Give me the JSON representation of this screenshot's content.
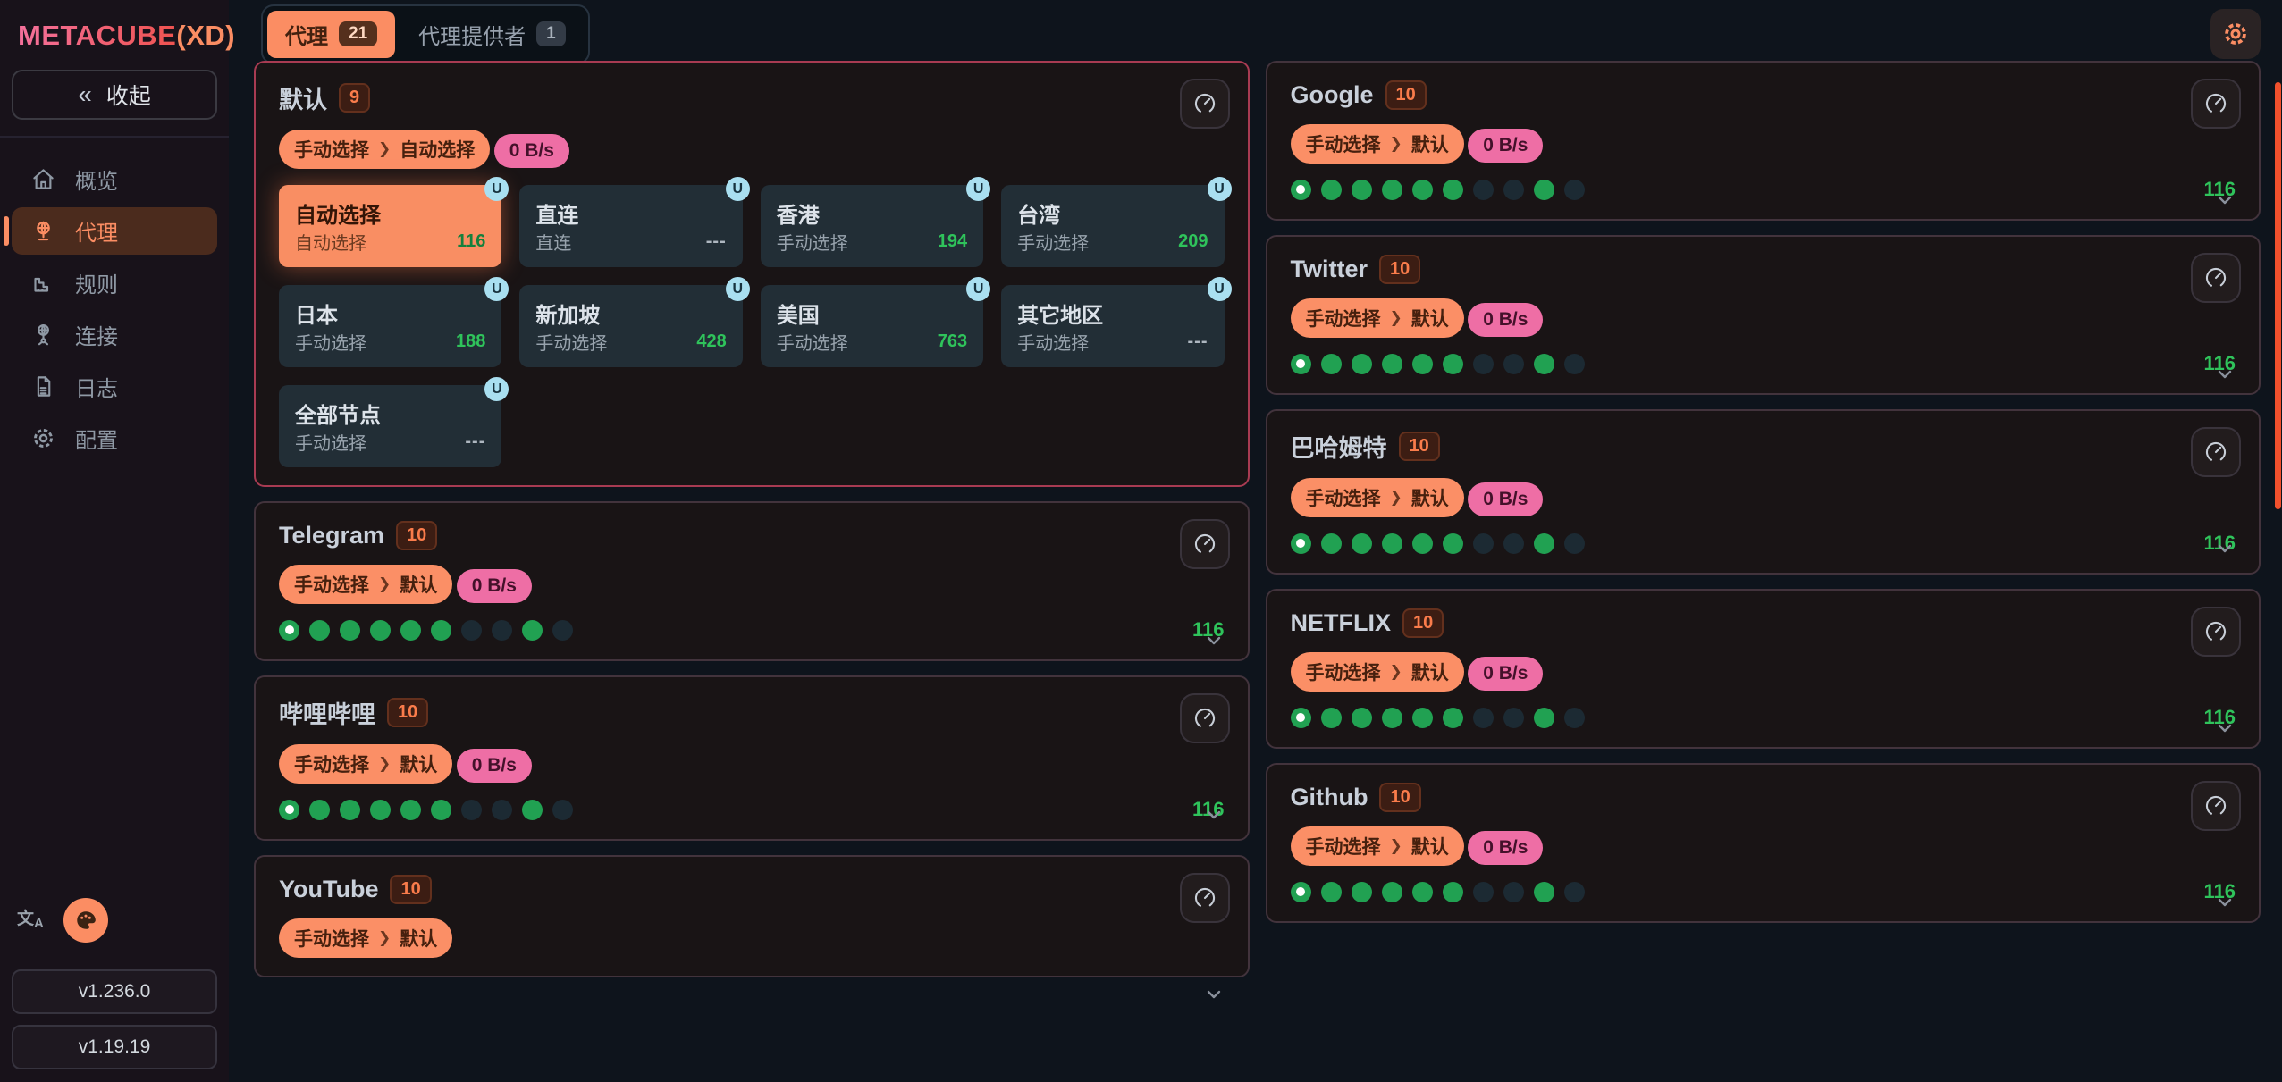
{
  "sidebar": {
    "logo": {
      "part1": "METACUBE",
      "part2": "(XD)"
    },
    "collapse_label": "收起",
    "collapse_icon": "chevrons-left",
    "items": [
      {
        "id": "overview",
        "label": "概览",
        "icon": "home-icon",
        "active": false
      },
      {
        "id": "proxies",
        "label": "代理",
        "icon": "proxy-globe-icon",
        "active": true
      },
      {
        "id": "rules",
        "label": "规则",
        "icon": "ruler-icon",
        "active": false
      },
      {
        "id": "connections",
        "label": "连接",
        "icon": "network-icon",
        "active": false
      },
      {
        "id": "logs",
        "label": "日志",
        "icon": "file-text-icon",
        "active": false
      },
      {
        "id": "config",
        "label": "配置",
        "icon": "gear-icon",
        "active": false
      }
    ],
    "tools": [
      {
        "id": "language",
        "icon": "translate-icon"
      },
      {
        "id": "theme",
        "icon": "palette-icon"
      }
    ],
    "versions": [
      "v1.236.0",
      "v1.19.19"
    ]
  },
  "header": {
    "tabs": [
      {
        "label": "代理",
        "count": "21",
        "active": true
      },
      {
        "label": "代理提供者",
        "count": "1",
        "active": false
      }
    ],
    "settings_icon": "gear-icon"
  },
  "ui": {
    "chip_separator": "❯",
    "u_badge_letter": "U",
    "latency_test_icon": "speedometer-icon",
    "colors": {
      "accent_orange": "#fb8d63",
      "pink_chip": "#ee6ea5",
      "green_dot": "#21a152",
      "dot_off": "#1c2a33",
      "latency_green": "#2fc35b",
      "active_card_border": "#a83b52",
      "selected_node_bg": "#f98e63",
      "u_badge_bg": "#a9dff0",
      "scrollbar_thumb": "#f1512d"
    }
  },
  "groups": [
    {
      "name": "默认",
      "count": "9",
      "column": "left",
      "expanded": true,
      "selector": [
        "手动选择",
        "自动选择"
      ],
      "speed": "0 B/s",
      "nodes": [
        {
          "name": "自动选择",
          "sub": "自动选择",
          "latency": "116",
          "selected": true,
          "badge": "U"
        },
        {
          "name": "直连",
          "sub": "直连",
          "latency": "---",
          "selected": false,
          "badge": "U"
        },
        {
          "name": "香港",
          "sub": "手动选择",
          "latency": "194",
          "selected": false,
          "badge": "U"
        },
        {
          "name": "台湾",
          "sub": "手动选择",
          "latency": "209",
          "selected": false,
          "badge": "U"
        },
        {
          "name": "日本",
          "sub": "手动选择",
          "latency": "188",
          "selected": false,
          "badge": "U"
        },
        {
          "name": "新加坡",
          "sub": "手动选择",
          "latency": "428",
          "selected": false,
          "badge": "U"
        },
        {
          "name": "美国",
          "sub": "手动选择",
          "latency": "763",
          "selected": false,
          "badge": "U"
        },
        {
          "name": "其它地区",
          "sub": "手动选择",
          "latency": "---",
          "selected": false,
          "badge": "U"
        },
        {
          "name": "全部节点",
          "sub": "手动选择",
          "latency": "---",
          "selected": false,
          "badge": "U"
        }
      ]
    },
    {
      "name": "Telegram",
      "count": "10",
      "column": "left",
      "selector": [
        "手动选择",
        "默认"
      ],
      "speed": "0 B/s",
      "latency": "116",
      "dots": [
        "current",
        "up",
        "up",
        "up",
        "up",
        "up",
        "off",
        "off",
        "up",
        "off"
      ]
    },
    {
      "name": "哔哩哔哩",
      "count": "10",
      "column": "left",
      "selector": [
        "手动选择",
        "默认"
      ],
      "speed": "0 B/s",
      "latency": "116",
      "dots": [
        "current",
        "up",
        "up",
        "up",
        "up",
        "up",
        "off",
        "off",
        "up",
        "off"
      ]
    },
    {
      "name": "YouTube",
      "count": "10",
      "column": "left",
      "selector": [
        "手动选择",
        "默认"
      ],
      "truncated": true
    },
    {
      "name": "Google",
      "count": "10",
      "column": "right",
      "selector": [
        "手动选择",
        "默认"
      ],
      "speed": "0 B/s",
      "latency": "116",
      "dots": [
        "current",
        "up",
        "up",
        "up",
        "up",
        "up",
        "off",
        "off",
        "up",
        "off"
      ]
    },
    {
      "name": "Twitter",
      "count": "10",
      "column": "right",
      "selector": [
        "手动选择",
        "默认"
      ],
      "speed": "0 B/s",
      "latency": "116",
      "dots": [
        "current",
        "up",
        "up",
        "up",
        "up",
        "up",
        "off",
        "off",
        "up",
        "off"
      ]
    },
    {
      "name": "巴哈姆特",
      "count": "10",
      "column": "right",
      "selector": [
        "手动选择",
        "默认"
      ],
      "speed": "0 B/s",
      "latency": "116",
      "dots": [
        "current",
        "up",
        "up",
        "up",
        "up",
        "up",
        "off",
        "off",
        "up",
        "off"
      ]
    },
    {
      "name": "NETFLIX",
      "count": "10",
      "column": "right",
      "selector": [
        "手动选择",
        "默认"
      ],
      "speed": "0 B/s",
      "latency": "116",
      "dots": [
        "current",
        "up",
        "up",
        "up",
        "up",
        "up",
        "off",
        "off",
        "up",
        "off"
      ]
    },
    {
      "name": "Github",
      "count": "10",
      "column": "right",
      "selector": [
        "手动选择",
        "默认"
      ],
      "speed": "0 B/s",
      "latency": "116",
      "dots": [
        "current",
        "up",
        "up",
        "up",
        "up",
        "up",
        "off",
        "off",
        "up",
        "off"
      ]
    }
  ]
}
